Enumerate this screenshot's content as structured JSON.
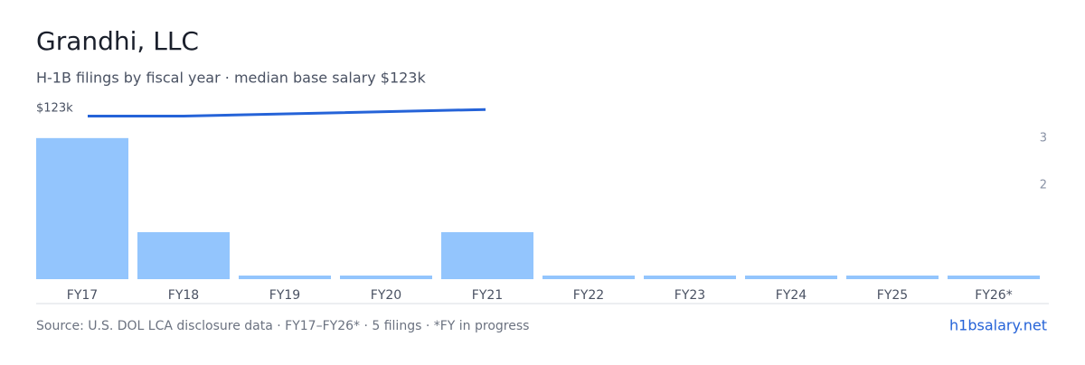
{
  "title": "Grandhi, LLC",
  "subtitle": "H-1B filings by fiscal year · median base salary $123k",
  "chart_data": {
    "type": "bar",
    "categories": [
      "FY17",
      "FY18",
      "FY19",
      "FY20",
      "FY21",
      "FY22",
      "FY23",
      "FY24",
      "FY25",
      "FY26*"
    ],
    "values": [
      3,
      1,
      0,
      0,
      1,
      0,
      0,
      0,
      0,
      0
    ],
    "color": "#93c5fd",
    "ylim": [
      0,
      3.65
    ],
    "yticks": [
      2,
      3
    ],
    "salary": {
      "name": "$123k",
      "color": "#2563d8",
      "x": [
        "FY17",
        "FY18",
        "FY21"
      ],
      "values": [
        123500,
        123500,
        128500
      ],
      "y2lim": [
        0,
        130000
      ]
    }
  },
  "footer": {
    "source": "Source: U.S. DOL LCA disclosure data · FY17–FY26* · 5 filings · *FY in progress",
    "link": "h1bsalary.net"
  }
}
